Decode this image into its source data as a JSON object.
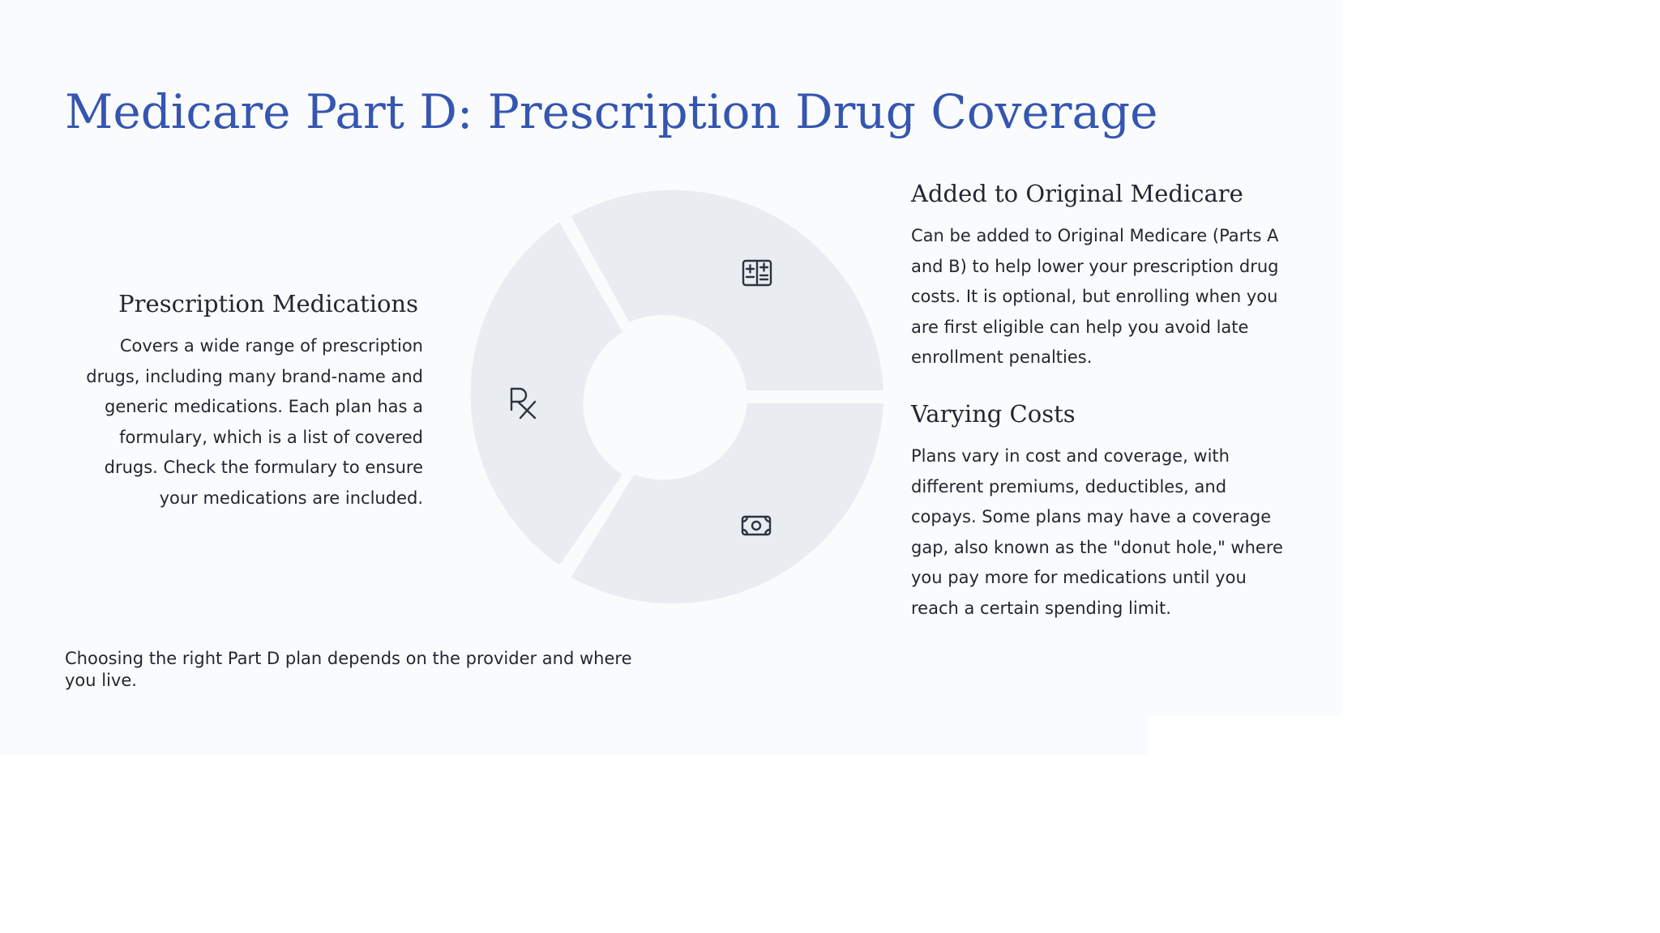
{
  "title": "Medicare Part D: Prescription Drug Coverage",
  "left": {
    "heading": "Prescription Medications",
    "body": "Covers a wide range of prescription drugs, including many brand-name and generic medications. Each plan has a formulary, which is a list of covered drugs. Check the formulary to ensure your medications are included."
  },
  "right_top": {
    "heading": "Added to Original Medicare",
    "body": "Can be added to Original Medicare (Parts A and B) to help lower your prescription drug costs. It is optional, but enrolling when you are first eligible can help you avoid late enrollment penalties."
  },
  "right_bottom": {
    "heading": "Varying Costs",
    "body": "Plans vary in cost and coverage, with different premiums, deductibles, and copays. Some plans may have a coverage gap, also known as the \"donut hole,\" where you pay more for medications until you reach a certain spending limit."
  },
  "footer": "Choosing the right Part D plan depends on the provider and where you live.",
  "diagram": {
    "segments": [
      {
        "id": "added-to-original-medicare",
        "icon": "medical-card-icon"
      },
      {
        "id": "varying-costs",
        "icon": "banknote-icon"
      },
      {
        "id": "prescription-medications",
        "icon": "rx-icon"
      }
    ],
    "segment_color": "#e9ecf0"
  },
  "colors": {
    "title": "#3556b0",
    "text": "#222831",
    "background": "#fafbfd"
  }
}
